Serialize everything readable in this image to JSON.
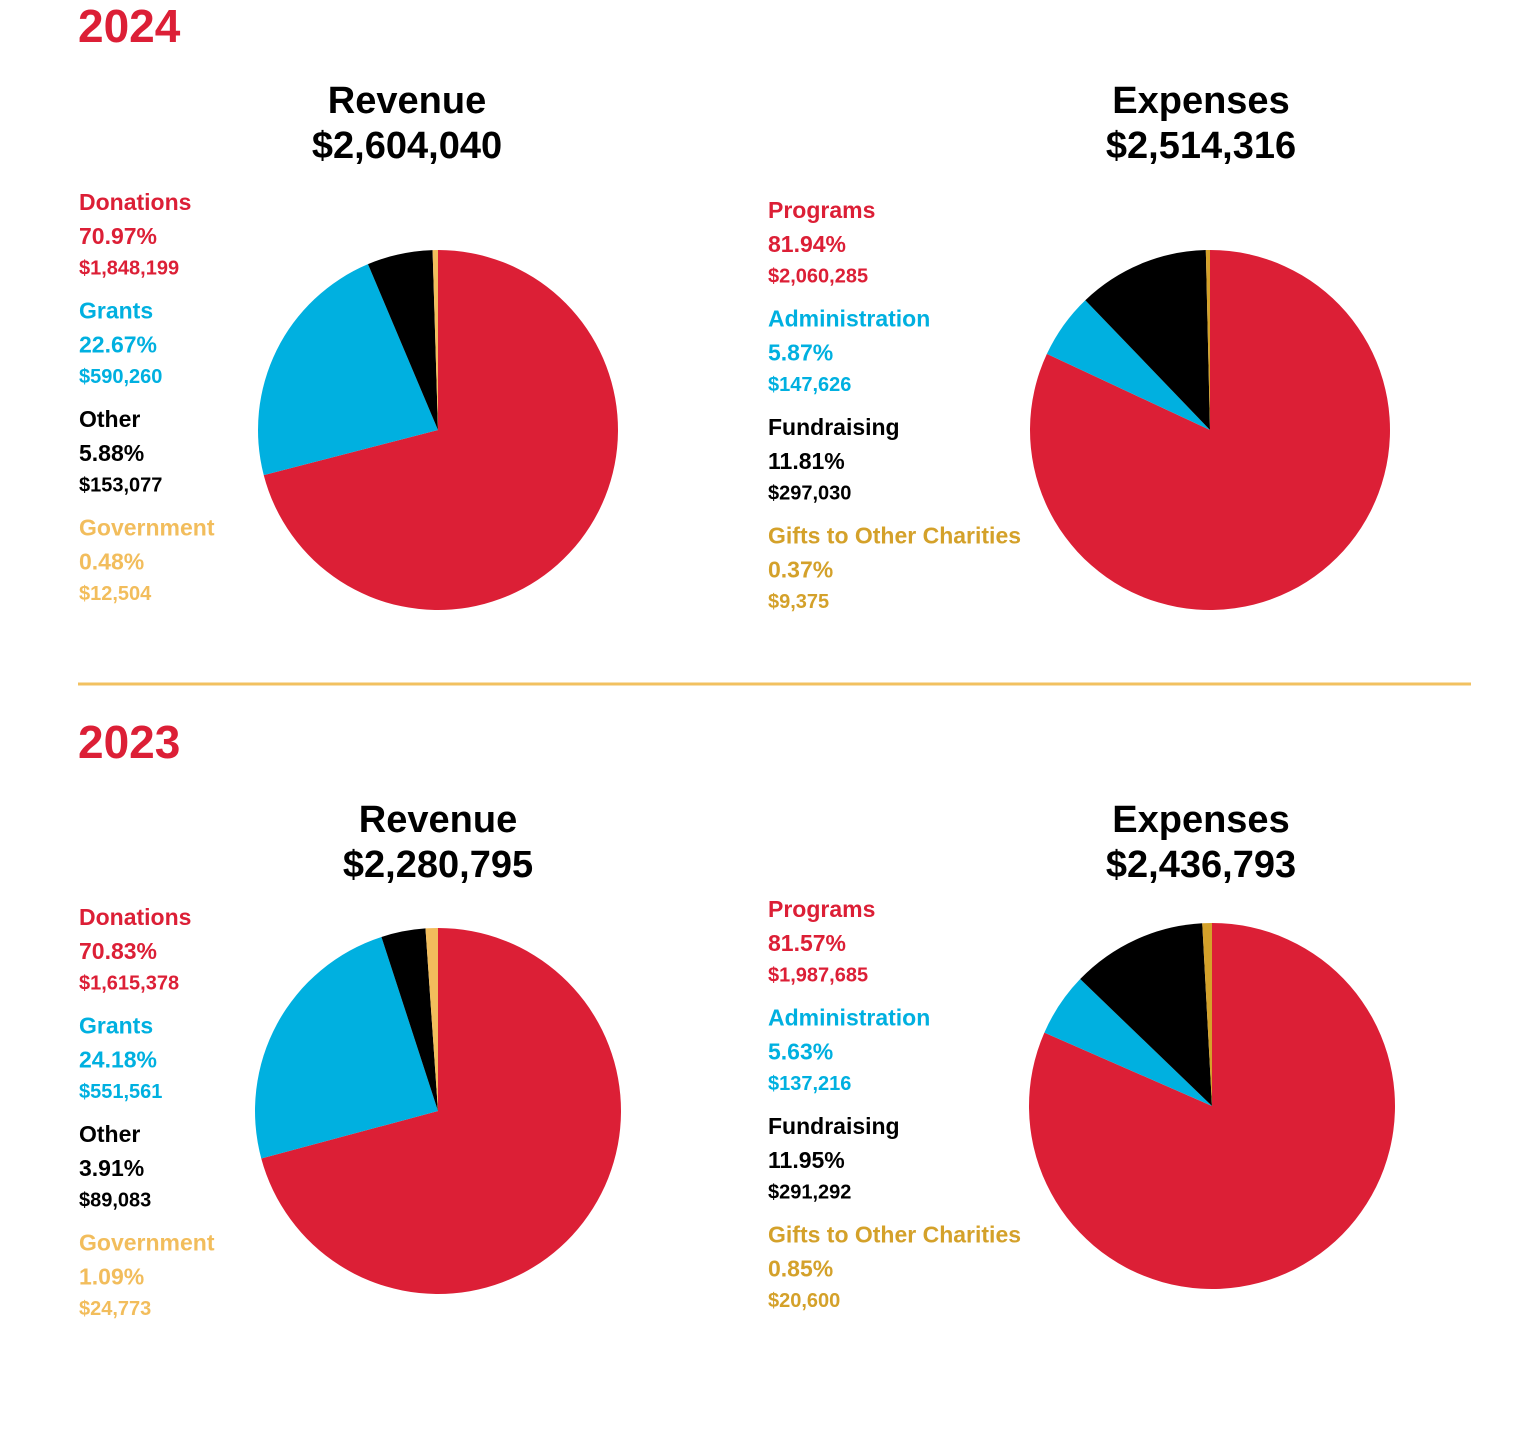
{
  "years": [
    "2024",
    "2023"
  ],
  "chart_data": [
    {
      "type": "pie",
      "title": "Revenue",
      "subtitle": "$2,604,040",
      "categories": [
        "Donations",
        "Grants",
        "Other",
        "Government"
      ],
      "values": [
        70.97,
        22.67,
        5.88,
        0.48
      ],
      "value_labels": [
        "70.97%",
        "22.67%",
        "5.88%",
        "0.48%"
      ],
      "amounts": [
        "$1,848,199",
        "$590,260",
        "$153,077",
        "$12,504"
      ],
      "colors": [
        "#dc1f36",
        "#00b0e0",
        "#000000",
        "#f2bd5c"
      ]
    },
    {
      "type": "pie",
      "title": "Expenses",
      "subtitle": "$2,514,316",
      "categories": [
        "Programs",
        "Administration",
        "Fundraising",
        "Gifts to Other Charities"
      ],
      "values": [
        81.94,
        5.87,
        11.81,
        0.37
      ],
      "value_labels": [
        "81.94%",
        "5.87%",
        "11.81%",
        "0.37%"
      ],
      "amounts": [
        "$2,060,285",
        "$147,626",
        "$297,030",
        "$9,375"
      ],
      "colors": [
        "#dc1f36",
        "#00b0e0",
        "#000000",
        "#d4a12a"
      ]
    },
    {
      "type": "pie",
      "title": "Revenue",
      "subtitle": "$2,280,795",
      "categories": [
        "Donations",
        "Grants",
        "Other",
        "Government"
      ],
      "values": [
        70.83,
        24.18,
        3.91,
        1.09
      ],
      "value_labels": [
        "70.83%",
        "24.18%",
        "3.91%",
        "1.09%"
      ],
      "amounts": [
        "$1,615,378",
        "$551,561",
        "$89,083",
        "$24,773"
      ],
      "colors": [
        "#dc1f36",
        "#00b0e0",
        "#000000",
        "#f2bd5c"
      ]
    },
    {
      "type": "pie",
      "title": "Expenses",
      "subtitle": "$2,436,793",
      "categories": [
        "Programs",
        "Administration",
        "Fundraising",
        "Gifts to Other Charities"
      ],
      "values": [
        81.57,
        5.63,
        11.95,
        0.85
      ],
      "value_labels": [
        "81.57%",
        "5.63%",
        "11.95%",
        "0.85%"
      ],
      "amounts": [
        "$1,987,685",
        "$137,216",
        "$291,292",
        "$20,600"
      ],
      "colors": [
        "#dc1f36",
        "#00b0e0",
        "#000000",
        "#d4a12a"
      ]
    }
  ]
}
